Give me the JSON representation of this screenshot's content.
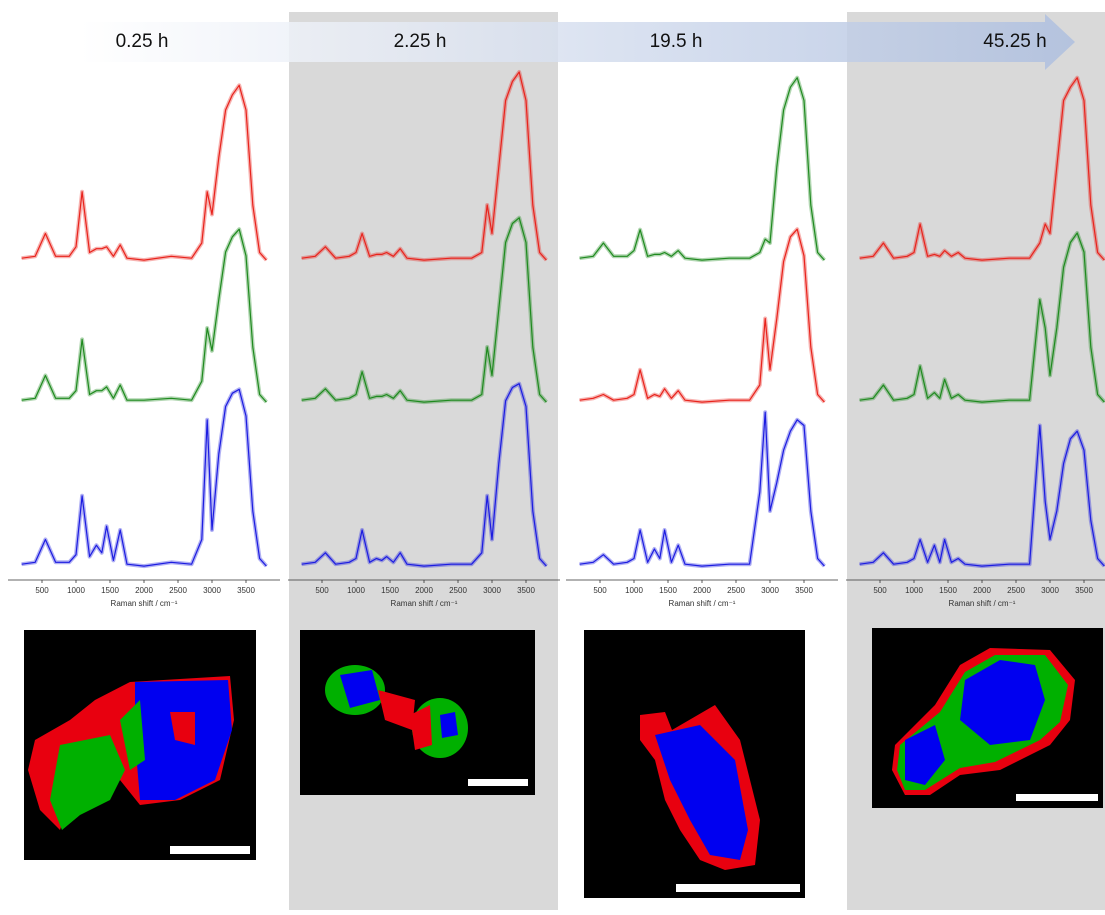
{
  "chart_data": [
    {
      "type": "line",
      "title": "0.25 h",
      "xlabel": "Raman shift / cm⁻¹",
      "xlim": [
        0,
        4000
      ],
      "xticks": [
        500,
        1000,
        1500,
        2000,
        2500,
        3000,
        3500
      ],
      "x": [
        200,
        400,
        550,
        700,
        900,
        1000,
        1090,
        1200,
        1300,
        1380,
        1450,
        1550,
        1650,
        1750,
        2000,
        2400,
        2700,
        2850,
        2930,
        3000,
        3100,
        3200,
        3300,
        3400,
        3500,
        3600,
        3700,
        3800
      ],
      "series": [
        {
          "color": "#e8231c",
          "values": [
            0.02,
            0.03,
            0.15,
            0.03,
            0.03,
            0.08,
            0.37,
            0.05,
            0.07,
            0.07,
            0.08,
            0.03,
            0.09,
            0.02,
            0.01,
            0.03,
            0.02,
            0.1,
            0.37,
            0.25,
            0.55,
            0.8,
            0.88,
            0.93,
            0.8,
            0.3,
            0.05,
            0.01
          ]
        },
        {
          "color": "#1f8a1f",
          "values": [
            0.02,
            0.03,
            0.15,
            0.03,
            0.03,
            0.07,
            0.34,
            0.05,
            0.07,
            0.07,
            0.09,
            0.03,
            0.1,
            0.02,
            0.02,
            0.03,
            0.02,
            0.12,
            0.4,
            0.28,
            0.55,
            0.8,
            0.88,
            0.92,
            0.78,
            0.3,
            0.05,
            0.01
          ]
        },
        {
          "color": "#1c1ce0",
          "values": [
            0.02,
            0.03,
            0.15,
            0.03,
            0.03,
            0.07,
            0.38,
            0.06,
            0.12,
            0.08,
            0.22,
            0.04,
            0.2,
            0.02,
            0.01,
            0.03,
            0.02,
            0.15,
            0.78,
            0.2,
            0.6,
            0.85,
            0.92,
            0.94,
            0.8,
            0.3,
            0.05,
            0.01
          ]
        }
      ]
    },
    {
      "type": "line",
      "title": "2.25 h",
      "xlabel": "Raman shift / cm⁻¹",
      "xlim": [
        0,
        4000
      ],
      "xticks": [
        500,
        1000,
        1500,
        2000,
        2500,
        3000,
        3500
      ],
      "x": [
        200,
        400,
        550,
        700,
        900,
        1000,
        1090,
        1200,
        1300,
        1380,
        1450,
        1550,
        1650,
        1750,
        2000,
        2400,
        2700,
        2850,
        2930,
        3000,
        3100,
        3200,
        3300,
        3400,
        3500,
        3600,
        3700,
        3800
      ],
      "series": [
        {
          "color": "#e8231c",
          "values": [
            0.02,
            0.03,
            0.08,
            0.02,
            0.03,
            0.05,
            0.15,
            0.03,
            0.04,
            0.04,
            0.05,
            0.03,
            0.07,
            0.02,
            0.01,
            0.02,
            0.02,
            0.05,
            0.3,
            0.15,
            0.5,
            0.85,
            0.95,
            1.0,
            0.85,
            0.3,
            0.05,
            0.01
          ]
        },
        {
          "color": "#1f8a1f",
          "values": [
            0.02,
            0.03,
            0.08,
            0.02,
            0.03,
            0.05,
            0.17,
            0.03,
            0.04,
            0.04,
            0.05,
            0.03,
            0.07,
            0.02,
            0.01,
            0.02,
            0.02,
            0.05,
            0.3,
            0.15,
            0.5,
            0.85,
            0.95,
            0.98,
            0.85,
            0.3,
            0.05,
            0.01
          ]
        },
        {
          "color": "#1c1ce0",
          "values": [
            0.02,
            0.03,
            0.08,
            0.02,
            0.03,
            0.05,
            0.2,
            0.03,
            0.05,
            0.04,
            0.06,
            0.03,
            0.08,
            0.02,
            0.01,
            0.02,
            0.02,
            0.08,
            0.38,
            0.15,
            0.55,
            0.88,
            0.95,
            0.97,
            0.85,
            0.3,
            0.05,
            0.01
          ]
        }
      ]
    },
    {
      "type": "line",
      "title": "19.5 h",
      "xlabel": "Raman shift / cm⁻¹",
      "xlim": [
        0,
        4000
      ],
      "xticks": [
        500,
        1000,
        1500,
        2000,
        2500,
        3000,
        3500
      ],
      "x": [
        200,
        400,
        550,
        700,
        900,
        1000,
        1090,
        1200,
        1300,
        1380,
        1450,
        1550,
        1650,
        1750,
        2000,
        2400,
        2700,
        2850,
        2930,
        3000,
        3100,
        3200,
        3300,
        3400,
        3500,
        3600,
        3700,
        3800
      ],
      "series": [
        {
          "color": "#1f8a1f",
          "values": [
            0.02,
            0.03,
            0.1,
            0.03,
            0.03,
            0.06,
            0.17,
            0.03,
            0.04,
            0.04,
            0.05,
            0.03,
            0.06,
            0.02,
            0.01,
            0.02,
            0.02,
            0.05,
            0.12,
            0.1,
            0.5,
            0.8,
            0.92,
            0.97,
            0.85,
            0.3,
            0.05,
            0.01
          ]
        },
        {
          "color": "#e8231c",
          "values": [
            0.02,
            0.03,
            0.05,
            0.02,
            0.03,
            0.05,
            0.18,
            0.03,
            0.05,
            0.04,
            0.08,
            0.03,
            0.07,
            0.02,
            0.01,
            0.02,
            0.02,
            0.1,
            0.45,
            0.18,
            0.45,
            0.75,
            0.88,
            0.92,
            0.78,
            0.3,
            0.05,
            0.01
          ]
        },
        {
          "color": "#1c1ce0",
          "values": [
            0.02,
            0.03,
            0.07,
            0.02,
            0.03,
            0.05,
            0.2,
            0.03,
            0.1,
            0.05,
            0.2,
            0.03,
            0.12,
            0.02,
            0.01,
            0.02,
            0.02,
            0.4,
            0.82,
            0.3,
            0.45,
            0.62,
            0.72,
            0.78,
            0.75,
            0.3,
            0.05,
            0.01
          ]
        }
      ]
    },
    {
      "type": "line",
      "title": "45.25 h",
      "xlabel": "Raman shift / cm⁻¹",
      "xlim": [
        0,
        4000
      ],
      "xticks": [
        500,
        1000,
        1500,
        2000,
        2500,
        3000,
        3500
      ],
      "x": [
        200,
        400,
        550,
        700,
        900,
        1000,
        1090,
        1200,
        1300,
        1380,
        1450,
        1550,
        1650,
        1750,
        2000,
        2400,
        2700,
        2850,
        2930,
        3000,
        3100,
        3200,
        3300,
        3400,
        3500,
        3600,
        3700,
        3800
      ],
      "series": [
        {
          "color": "#e8231c",
          "values": [
            0.02,
            0.03,
            0.1,
            0.02,
            0.03,
            0.05,
            0.2,
            0.03,
            0.04,
            0.03,
            0.06,
            0.03,
            0.05,
            0.02,
            0.01,
            0.02,
            0.02,
            0.1,
            0.2,
            0.15,
            0.5,
            0.85,
            0.92,
            0.97,
            0.85,
            0.3,
            0.05,
            0.01
          ]
        },
        {
          "color": "#1f8a1f",
          "values": [
            0.02,
            0.03,
            0.1,
            0.02,
            0.03,
            0.05,
            0.2,
            0.03,
            0.06,
            0.03,
            0.13,
            0.03,
            0.05,
            0.02,
            0.01,
            0.02,
            0.02,
            0.55,
            0.4,
            0.15,
            0.4,
            0.72,
            0.85,
            0.9,
            0.8,
            0.3,
            0.05,
            0.01
          ]
        },
        {
          "color": "#1c1ce0",
          "values": [
            0.02,
            0.03,
            0.08,
            0.02,
            0.03,
            0.05,
            0.15,
            0.03,
            0.12,
            0.03,
            0.15,
            0.03,
            0.05,
            0.02,
            0.01,
            0.02,
            0.02,
            0.75,
            0.35,
            0.15,
            0.3,
            0.55,
            0.68,
            0.72,
            0.62,
            0.25,
            0.05,
            0.01
          ]
        }
      ]
    }
  ]
}
